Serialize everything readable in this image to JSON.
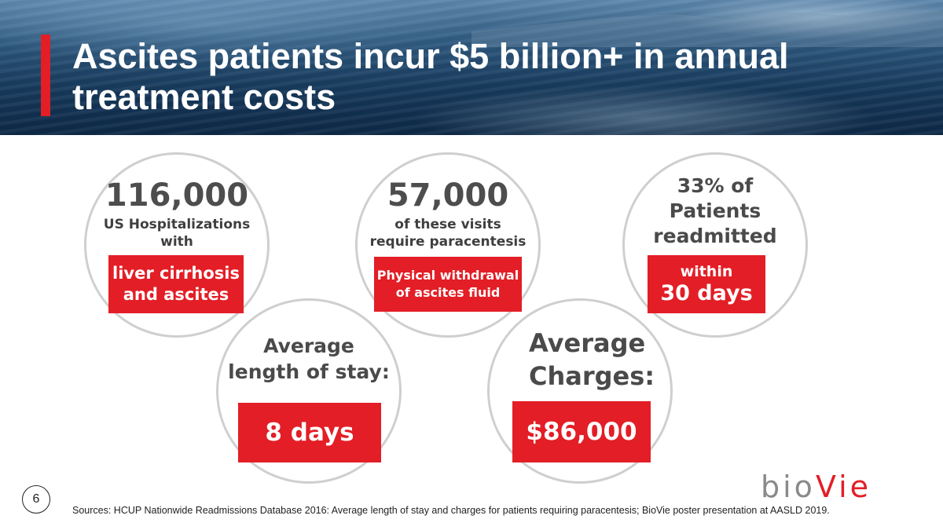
{
  "slide": {
    "title": "Ascites patients incur $5 billion+ in annual\ntreatment costs",
    "page_number": "6",
    "sources": "Sources: HCUP Nationwide Readmissions Database 2016: Average length of stay and charges for patients requiring paracentesis; BioVie poster presentation at AASLD 2019.",
    "logo": {
      "part1": "bio",
      "part2": "Vie"
    }
  },
  "stats": {
    "hospitalizations": {
      "number": "116,000",
      "line1": "US Hospitalizations",
      "line2": "with",
      "box_line1": "liver cirrhosis",
      "box_line2": "and ascites"
    },
    "paracentesis": {
      "number": "57,000",
      "line1": "of these visits",
      "line2": "require paracentesis",
      "box_line1": "Physical withdrawal",
      "box_line2": "of ascites fluid"
    },
    "readmitted": {
      "line1": "33% of",
      "line2": "Patients",
      "line3": "readmitted",
      "box_line1": "within",
      "box_line2": "30 days"
    },
    "length_of_stay": {
      "line1": "Average",
      "line2": "length of stay:",
      "box": "8 days"
    },
    "charges": {
      "line1": "Average",
      "line2": "Charges:",
      "box": "$86,000"
    }
  },
  "colors": {
    "accent_red": "#e31e26",
    "circle_border": "#cfcfcf",
    "banner_blue": "#173a5c"
  }
}
